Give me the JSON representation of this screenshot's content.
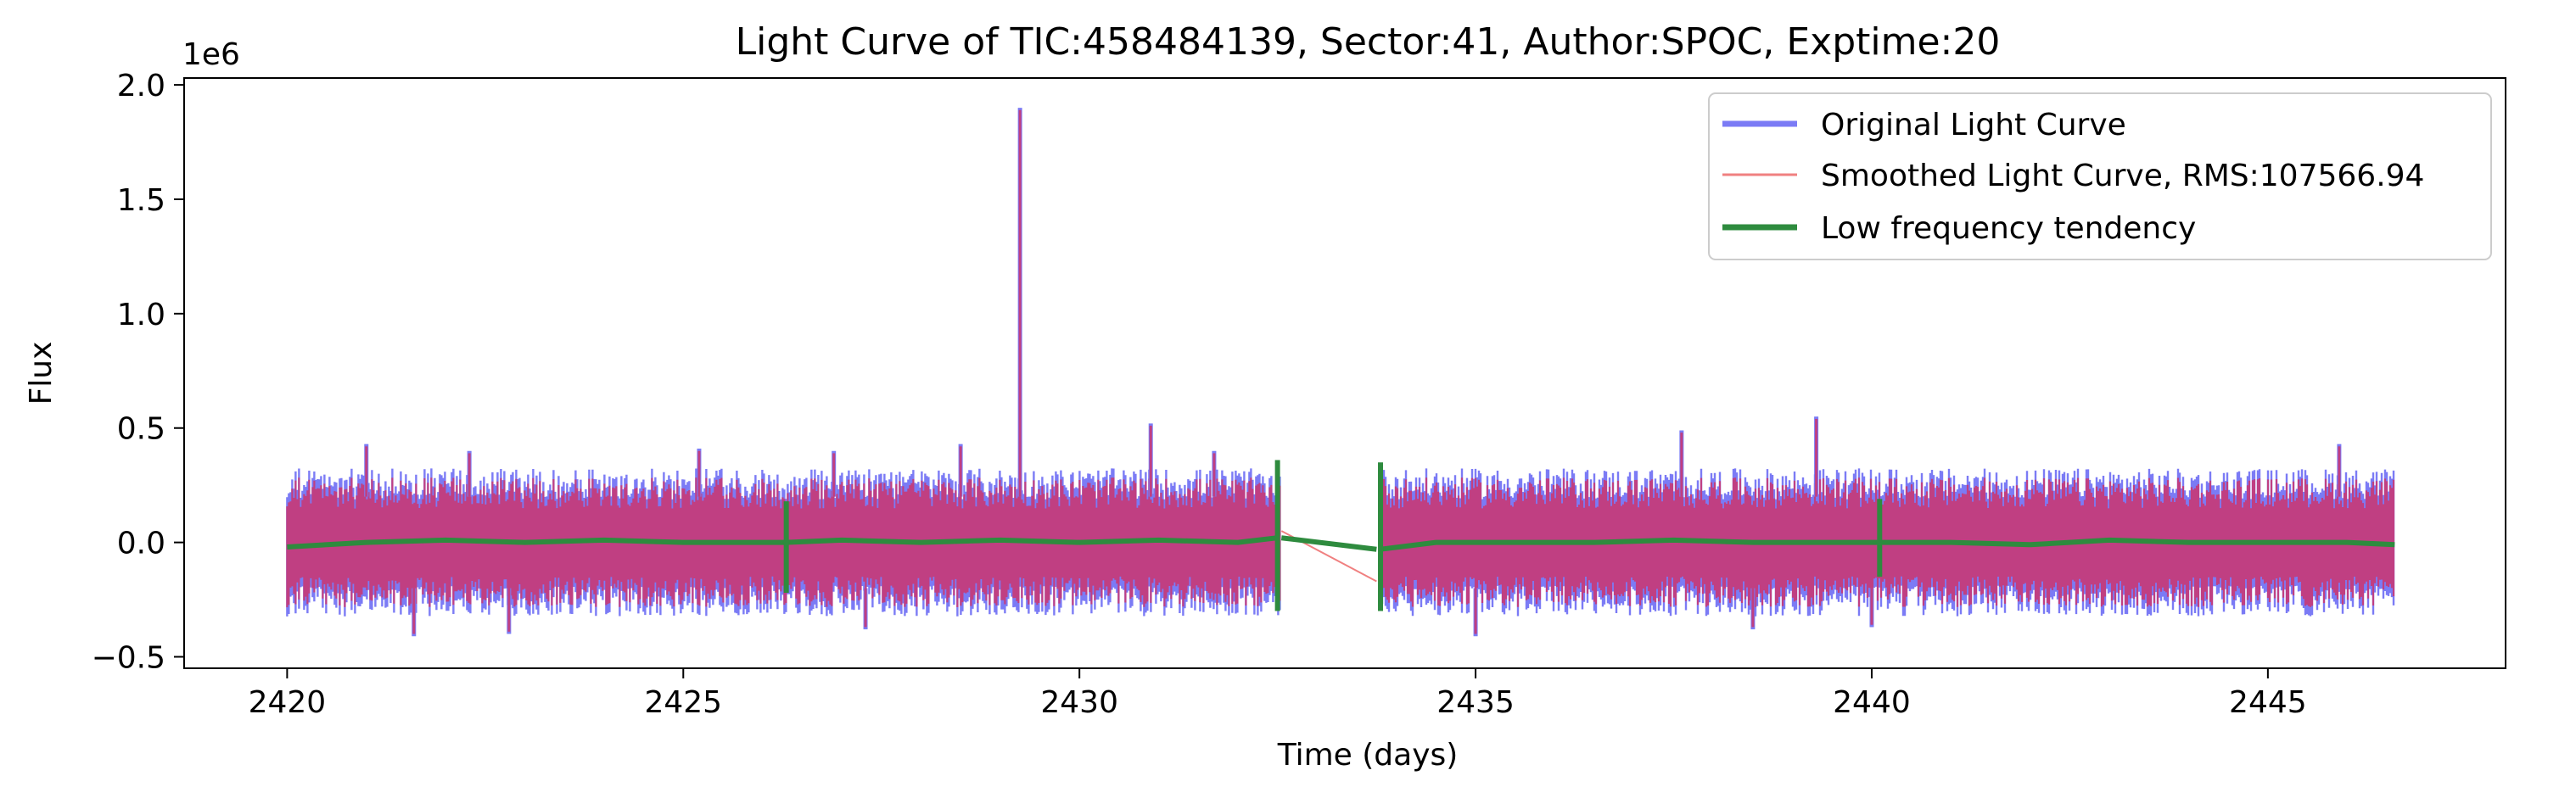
{
  "chart_data": {
    "type": "line",
    "title": "Light Curve of TIC:458484139, Sector:41, Author:SPOC, Exptime:20",
    "xlabel": "Time (days)",
    "ylabel": "Flux",
    "y_scale_label": "1e6",
    "xlim": [
      2418.7,
      2448.0
    ],
    "ylim": [
      -0.55,
      2.03
    ],
    "x_ticks": [
      2420,
      2425,
      2430,
      2435,
      2440,
      2445
    ],
    "y_ticks": [
      -0.5,
      0.0,
      0.5,
      1.0,
      1.5,
      2.0
    ],
    "x_tick_labels": [
      "2420",
      "2425",
      "2430",
      "2435",
      "2440",
      "2445"
    ],
    "y_tick_labels": [
      "−0.5",
      "0.0",
      "0.5",
      "1.0",
      "1.5",
      "2.0"
    ],
    "grid": false,
    "legend_position": "top-right",
    "segments": [
      [
        2420.0,
        2432.55
      ],
      [
        2433.8,
        2446.6
      ]
    ],
    "typical_band": {
      "low": -0.27,
      "high": 0.27
    },
    "spikes": [
      {
        "x": 2421.0,
        "y": 0.43
      },
      {
        "x": 2422.3,
        "y": 0.4
      },
      {
        "x": 2425.2,
        "y": 0.41
      },
      {
        "x": 2426.9,
        "y": 0.4
      },
      {
        "x": 2428.5,
        "y": 0.43
      },
      {
        "x": 2429.25,
        "y": 1.9
      },
      {
        "x": 2430.9,
        "y": 0.52
      },
      {
        "x": 2431.7,
        "y": 0.4
      },
      {
        "x": 2437.6,
        "y": 0.49
      },
      {
        "x": 2439.3,
        "y": 0.55
      },
      {
        "x": 2445.9,
        "y": 0.43
      }
    ],
    "dips": [
      {
        "x": 2421.6,
        "y": -0.41
      },
      {
        "x": 2422.8,
        "y": -0.4
      },
      {
        "x": 2427.3,
        "y": -0.38
      },
      {
        "x": 2435.0,
        "y": -0.41
      },
      {
        "x": 2438.5,
        "y": -0.38
      },
      {
        "x": 2440.0,
        "y": -0.37
      }
    ],
    "series": [
      {
        "name": "Original Light Curve",
        "color": "#7b7bf5",
        "style": "band"
      },
      {
        "name": "Smoothed Light Curve, RMS:107566.94",
        "color": "#f08080",
        "style": "band",
        "gap_connector": [
          [
            2432.55,
            0.05
          ],
          [
            2433.75,
            -0.17
          ]
        ]
      },
      {
        "name": "Low frequency tendency",
        "color": "#2e8b3e",
        "style": "line",
        "x": [
          2420.0,
          2421.0,
          2422.0,
          2423.0,
          2424.0,
          2425.0,
          2426.0,
          2426.3,
          2427.0,
          2428.0,
          2429.0,
          2430.0,
          2431.0,
          2432.0,
          2432.5,
          2433.8,
          2434.5,
          2435.5,
          2436.5,
          2437.5,
          2438.5,
          2439.5,
          2440.1,
          2441.0,
          2442.0,
          2443.0,
          2444.0,
          2445.0,
          2446.0,
          2446.6
        ],
        "y": [
          -0.02,
          0.0,
          0.01,
          0.0,
          0.01,
          0.0,
          0.0,
          0.0,
          0.01,
          0.0,
          0.01,
          0.0,
          0.01,
          0.0,
          0.02,
          -0.03,
          0.0,
          0.0,
          0.0,
          0.01,
          0.0,
          0.0,
          0.0,
          0.0,
          -0.01,
          0.01,
          0.0,
          0.0,
          0.0,
          -0.01
        ],
        "gap_connector": [
          [
            2432.55,
            0.02
          ],
          [
            2433.75,
            -0.03
          ]
        ],
        "vertical_marks": [
          {
            "x": 2426.3,
            "low": -0.22,
            "high": 0.18
          },
          {
            "x": 2432.5,
            "low": -0.3,
            "high": 0.36
          },
          {
            "x": 2433.8,
            "low": -0.3,
            "high": 0.35
          },
          {
            "x": 2440.1,
            "low": -0.15,
            "high": 0.19
          }
        ]
      }
    ]
  },
  "colors": {
    "original": "#7b7bf5",
    "smoothed": "#c03f82",
    "smoothed_edge": "#f08080",
    "trend": "#2e8b3e"
  }
}
